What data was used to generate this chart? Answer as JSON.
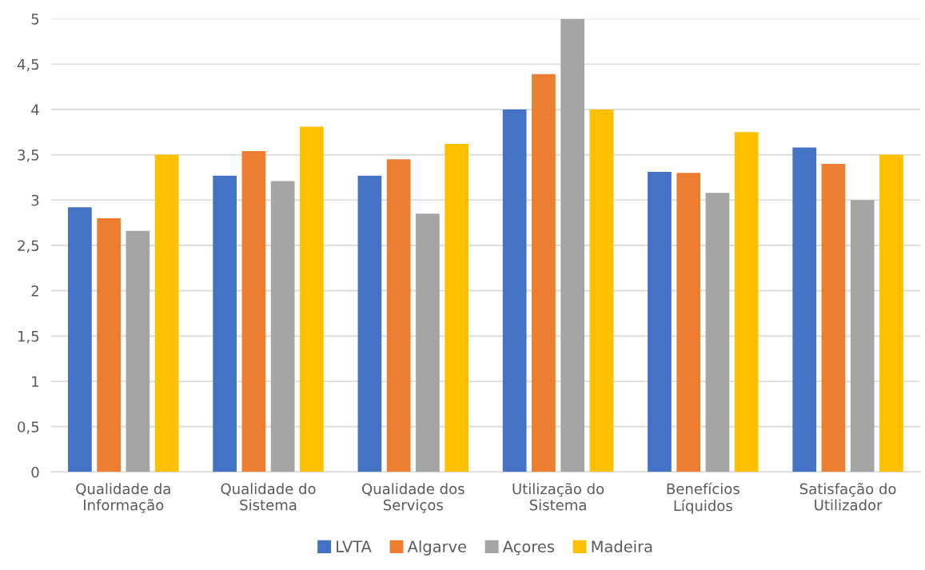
{
  "chart_data": {
    "type": "bar",
    "categories": [
      "Qualidade da\nInformação",
      "Qualidade do\nSistema",
      "Qualidade dos\nServiços",
      "Utilização do\nSistema",
      "Benefícios\nLíquidos",
      "Satisfação do\nUtilizador"
    ],
    "series": [
      {
        "name": "LVTA",
        "color": "#4472c4",
        "values": [
          2.92,
          3.27,
          3.27,
          4.0,
          3.31,
          3.58
        ]
      },
      {
        "name": "Algarve",
        "color": "#ed7d31",
        "values": [
          2.8,
          3.54,
          3.45,
          4.39,
          3.3,
          3.4
        ]
      },
      {
        "name": "Açores",
        "color": "#a5a5a5",
        "values": [
          2.66,
          3.21,
          2.85,
          5.0,
          3.08,
          3.0
        ]
      },
      {
        "name": "Madeira",
        "color": "#ffc000",
        "values": [
          3.5,
          3.81,
          3.62,
          4.0,
          3.75,
          3.5
        ]
      }
    ],
    "ylim": [
      0,
      5
    ],
    "yticks": [
      {
        "value": 0,
        "label": "0"
      },
      {
        "value": 0.5,
        "label": "0,5"
      },
      {
        "value": 1,
        "label": "1"
      },
      {
        "value": 1.5,
        "label": "1,5"
      },
      {
        "value": 2,
        "label": "2"
      },
      {
        "value": 2.5,
        "label": "2,5"
      },
      {
        "value": 3,
        "label": "3"
      },
      {
        "value": 3.5,
        "label": "3,5"
      },
      {
        "value": 4,
        "label": "4"
      },
      {
        "value": 4.5,
        "label": "4,5"
      },
      {
        "value": 5,
        "label": "5"
      }
    ],
    "grid": "y",
    "legend": "bottom"
  }
}
